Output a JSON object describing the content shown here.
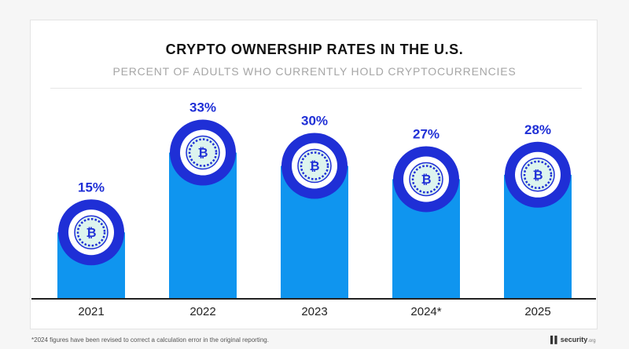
{
  "title": "CRYPTO OWNERSHIP RATES IN THE U.S.",
  "subtitle": "PERCENT OF ADULTS WHO CURRENTLY HOLD CRYPTOCURRENCIES",
  "footnote": "*2024 figures have been revised to correct a calculation error in the original reporting.",
  "brand": {
    "name": "security",
    "tld": ".org"
  },
  "colors": {
    "bar": "#0f95ef",
    "ring": "#1f2fd6",
    "coin_fill": "#ddf4ee",
    "value_label": "#1f2fd6",
    "axis": "#222222"
  },
  "icons": {
    "bar_cap": "bitcoin-coin-icon",
    "brand": "security-logo-icon"
  },
  "chart_data": {
    "type": "bar",
    "title": "CRYPTO OWNERSHIP RATES IN THE U.S.",
    "subtitle": "PERCENT OF ADULTS WHO CURRENTLY HOLD CRYPTOCURRENCIES",
    "categories": [
      "2021",
      "2022",
      "2023",
      "2024*",
      "2025"
    ],
    "values": [
      15,
      33,
      30,
      27,
      28
    ],
    "labels": [
      "15%",
      "33%",
      "30%",
      "27%",
      "28%"
    ],
    "xlabel": "",
    "ylabel": "",
    "grid": false,
    "legend": "none"
  }
}
